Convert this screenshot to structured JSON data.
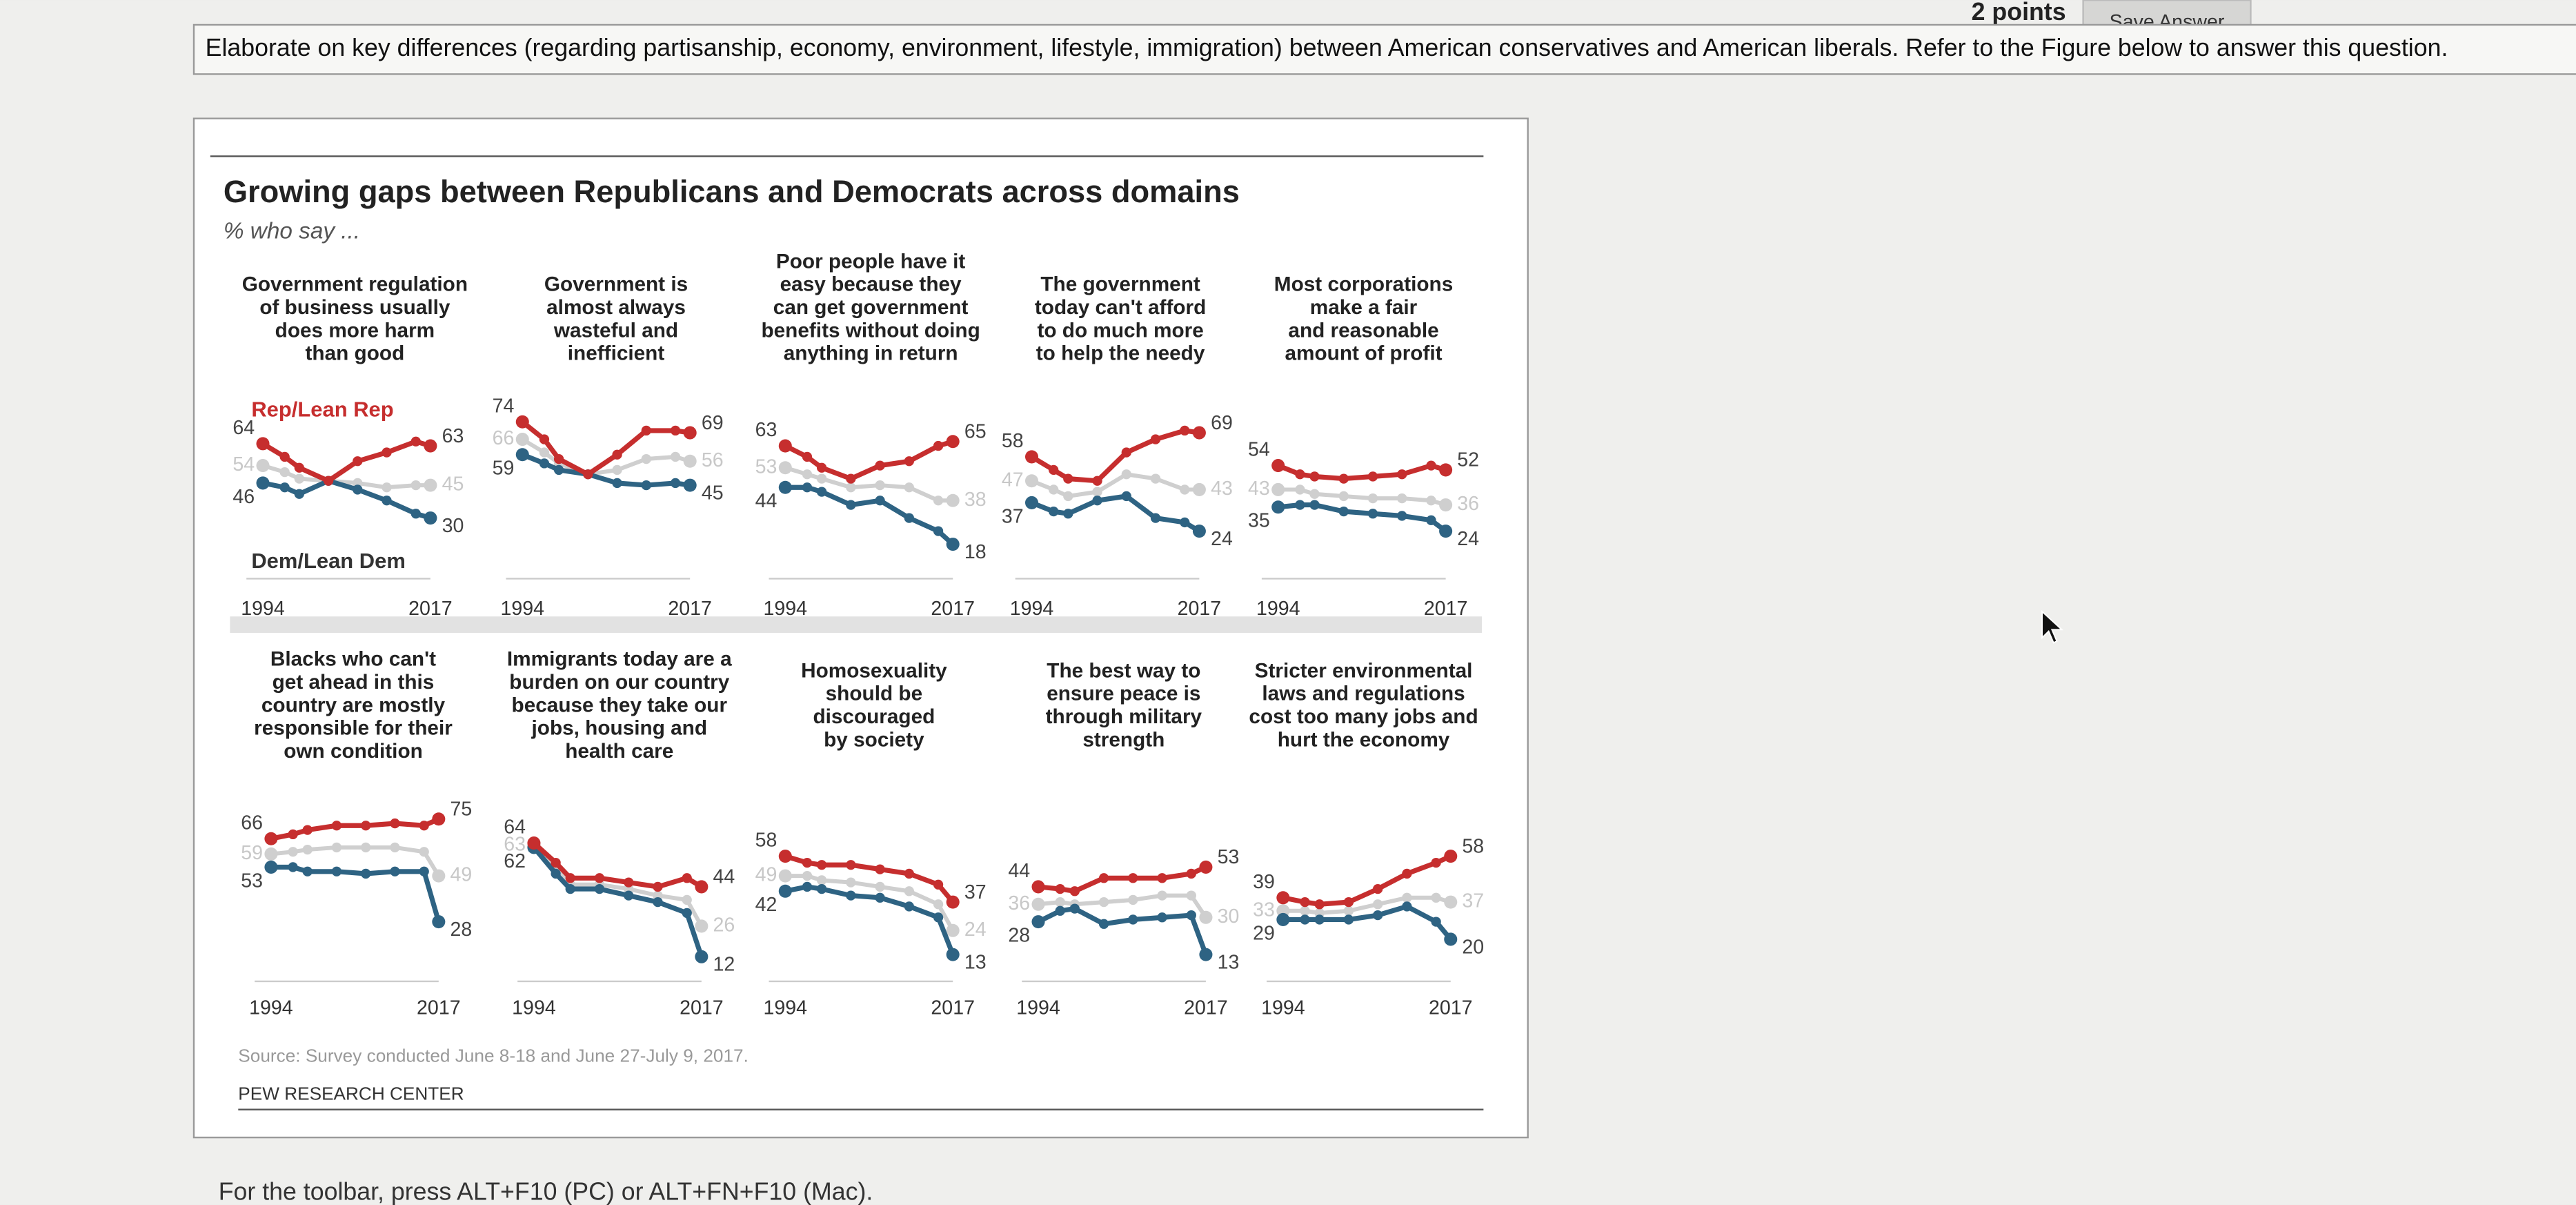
{
  "question": {
    "points": "2 points",
    "save_button": "Save Answer",
    "prompt": "Elaborate on key differences (regarding partisanship, economy, environment, lifestyle, immigration) between American conservatives and American liberals. Refer to the Figure below to answer this question."
  },
  "figure": {
    "title": "Growing gaps between Republicans and Democrats across domains",
    "subtitle": "% who say ...",
    "source": "Source: Survey conducted June 8-18 and June 27-July 9, 2017.",
    "credit": "PEW RESEARCH CENTER"
  },
  "chart_data": [
    {
      "type": "line",
      "title": [
        "Government regulation",
        "of business usually",
        "does more harm",
        "than good"
      ],
      "x": [
        1994,
        1997,
        1999,
        2003,
        2007,
        2011,
        2015,
        2017
      ],
      "xlim": [
        1994,
        2017
      ],
      "xticks": [
        1994,
        2017
      ],
      "ylim": [
        0,
        100
      ],
      "series": [
        {
          "name": "Rep/Lean Rep",
          "color": "#c62e2e",
          "values": [
            64,
            58,
            53,
            47,
            56,
            60,
            65,
            63
          ]
        },
        {
          "name": "Dem/Lean Dem",
          "color": "#2e6383",
          "values": [
            46,
            44,
            41,
            47,
            43,
            38,
            32,
            30
          ]
        },
        {
          "color": "#cfcfcf",
          "values": [
            54,
            51,
            48,
            47,
            46,
            44,
            45,
            45
          ]
        }
      ]
    },
    {
      "type": "line",
      "title": [
        "Government is",
        "almost always",
        "wasteful and",
        "inefficient"
      ],
      "x": [
        1994,
        1997,
        1999,
        2003,
        2007,
        2011,
        2015,
        2017
      ],
      "xlim": [
        1994,
        2017
      ],
      "xticks": [
        1994,
        2017
      ],
      "ylim": [
        0,
        100
      ],
      "series": [
        {
          "color": "#c62e2e",
          "values": [
            74,
            66,
            57,
            50,
            59,
            70,
            70,
            69
          ]
        },
        {
          "color": "#2e6383",
          "values": [
            59,
            55,
            52,
            50,
            46,
            45,
            46,
            45
          ]
        },
        {
          "color": "#cfcfcf",
          "values": [
            66,
            60,
            55,
            50,
            52,
            57,
            58,
            56
          ]
        }
      ]
    },
    {
      "type": "line",
      "title": [
        "Poor people have it",
        "easy because they",
        "can get government",
        "benefits without doing",
        "anything in return"
      ],
      "x": [
        1994,
        1997,
        1999,
        2003,
        2007,
        2011,
        2015,
        2017
      ],
      "xlim": [
        1994,
        2017
      ],
      "xticks": [
        1994,
        2017
      ],
      "ylim": [
        0,
        100
      ],
      "series": [
        {
          "color": "#c62e2e",
          "values": [
            63,
            58,
            53,
            48,
            54,
            56,
            63,
            65
          ]
        },
        {
          "color": "#2e6383",
          "values": [
            44,
            44,
            42,
            36,
            38,
            30,
            24,
            18
          ]
        },
        {
          "color": "#cfcfcf",
          "values": [
            53,
            50,
            48,
            44,
            45,
            44,
            38,
            38
          ]
        }
      ]
    },
    {
      "type": "line",
      "title": [
        "The government",
        "today can't afford",
        "to do much more",
        "to help the needy"
      ],
      "x": [
        1994,
        1997,
        1999,
        2003,
        2007,
        2011,
        2015,
        2017
      ],
      "xlim": [
        1994,
        2017
      ],
      "xticks": [
        1994,
        2017
      ],
      "ylim": [
        0,
        100
      ],
      "series": [
        {
          "color": "#c62e2e",
          "values": [
            58,
            52,
            48,
            47,
            60,
            66,
            70,
            69
          ]
        },
        {
          "color": "#2e6383",
          "values": [
            37,
            33,
            32,
            38,
            40,
            30,
            28,
            24
          ]
        },
        {
          "color": "#cfcfcf",
          "values": [
            47,
            43,
            40,
            42,
            50,
            48,
            43,
            43
          ]
        }
      ]
    },
    {
      "type": "line",
      "title": [
        "Most corporations",
        "make a fair",
        "and reasonable",
        "amount of profit"
      ],
      "x": [
        1994,
        1997,
        1999,
        2003,
        2007,
        2011,
        2015,
        2017
      ],
      "xlim": [
        1994,
        2017
      ],
      "xticks": [
        1994,
        2017
      ],
      "ylim": [
        0,
        100
      ],
      "series": [
        {
          "color": "#c62e2e",
          "values": [
            54,
            50,
            49,
            48,
            49,
            50,
            54,
            52
          ]
        },
        {
          "color": "#2e6383",
          "values": [
            35,
            36,
            36,
            33,
            32,
            31,
            29,
            24
          ]
        },
        {
          "color": "#cfcfcf",
          "values": [
            43,
            43,
            41,
            40,
            39,
            39,
            38,
            36
          ]
        }
      ]
    },
    {
      "type": "line",
      "title": [
        "Blacks who can't",
        "get ahead in this",
        "country are mostly",
        "responsible for their",
        "own condition"
      ],
      "x": [
        1994,
        1997,
        1999,
        2003,
        2007,
        2011,
        2015,
        2017
      ],
      "xlim": [
        1994,
        2017
      ],
      "xticks": [
        1994,
        2017
      ],
      "ylim": [
        0,
        100
      ],
      "series": [
        {
          "color": "#c62e2e",
          "values": [
            66,
            68,
            70,
            72,
            72,
            73,
            72,
            75
          ]
        },
        {
          "color": "#2e6383",
          "values": [
            53,
            53,
            51,
            51,
            50,
            51,
            51,
            28
          ]
        },
        {
          "color": "#cfcfcf",
          "values": [
            59,
            60,
            61,
            62,
            62,
            62,
            60,
            49
          ]
        }
      ]
    },
    {
      "type": "line",
      "title": [
        "Immigrants today are a",
        "burden on our country",
        "because they take our",
        "jobs, housing and",
        "health care"
      ],
      "x": [
        1994,
        1997,
        1999,
        2003,
        2007,
        2011,
        2015,
        2017
      ],
      "xlim": [
        1994,
        2017
      ],
      "xticks": [
        1994,
        2017
      ],
      "ylim": [
        0,
        100
      ],
      "series": [
        {
          "color": "#c62e2e",
          "values": [
            64,
            55,
            48,
            48,
            46,
            44,
            48,
            44
          ]
        },
        {
          "color": "#2e6383",
          "values": [
            62,
            50,
            43,
            43,
            40,
            37,
            32,
            12
          ]
        },
        {
          "color": "#cfcfcf",
          "values": [
            63,
            52,
            45,
            45,
            43,
            40,
            38,
            26
          ]
        }
      ]
    },
    {
      "type": "line",
      "title": [
        "Homosexuality",
        "should be",
        "discouraged",
        "by society"
      ],
      "x": [
        1994,
        1997,
        1999,
        2003,
        2007,
        2011,
        2015,
        2017
      ],
      "xlim": [
        1994,
        2017
      ],
      "xticks": [
        1994,
        2017
      ],
      "ylim": [
        0,
        100
      ],
      "series": [
        {
          "color": "#c62e2e",
          "values": [
            58,
            55,
            54,
            54,
            52,
            50,
            45,
            37
          ]
        },
        {
          "color": "#2e6383",
          "values": [
            42,
            44,
            43,
            40,
            39,
            35,
            30,
            13
          ]
        },
        {
          "color": "#cfcfcf",
          "values": [
            49,
            49,
            47,
            46,
            44,
            42,
            36,
            24
          ]
        }
      ]
    },
    {
      "type": "line",
      "title": [
        "The best way to",
        "ensure peace is",
        "through military",
        "strength"
      ],
      "x": [
        1994,
        1997,
        1999,
        2003,
        2007,
        2011,
        2015,
        2017
      ],
      "xlim": [
        1994,
        2017
      ],
      "xticks": [
        1994,
        2017
      ],
      "ylim": [
        0,
        100
      ],
      "series": [
        {
          "color": "#c62e2e",
          "values": [
            44,
            43,
            42,
            48,
            48,
            48,
            50,
            53
          ]
        },
        {
          "color": "#2e6383",
          "values": [
            28,
            33,
            34,
            27,
            29,
            30,
            31,
            13
          ]
        },
        {
          "color": "#cfcfcf",
          "values": [
            36,
            37,
            36,
            37,
            38,
            40,
            40,
            30
          ]
        }
      ]
    },
    {
      "type": "line",
      "title": [
        "Stricter environmental",
        "laws and regulations",
        "cost too many jobs and",
        "hurt the economy"
      ],
      "x": [
        1994,
        1997,
        1999,
        2003,
        2007,
        2011,
        2015,
        2017
      ],
      "xlim": [
        1994,
        2017
      ],
      "xticks": [
        1994,
        2017
      ],
      "ylim": [
        0,
        100
      ],
      "series": [
        {
          "color": "#c62e2e",
          "values": [
            39,
            37,
            36,
            37,
            43,
            50,
            55,
            58
          ]
        },
        {
          "color": "#2e6383",
          "values": [
            29,
            29,
            29,
            29,
            31,
            35,
            28,
            20
          ]
        },
        {
          "color": "#cfcfcf",
          "values": [
            33,
            33,
            32,
            33,
            36,
            39,
            39,
            37
          ]
        }
      ]
    }
  ],
  "footer": "For the toolbar, press ALT+F10 (PC) or ALT+FN+F10 (Mac)."
}
